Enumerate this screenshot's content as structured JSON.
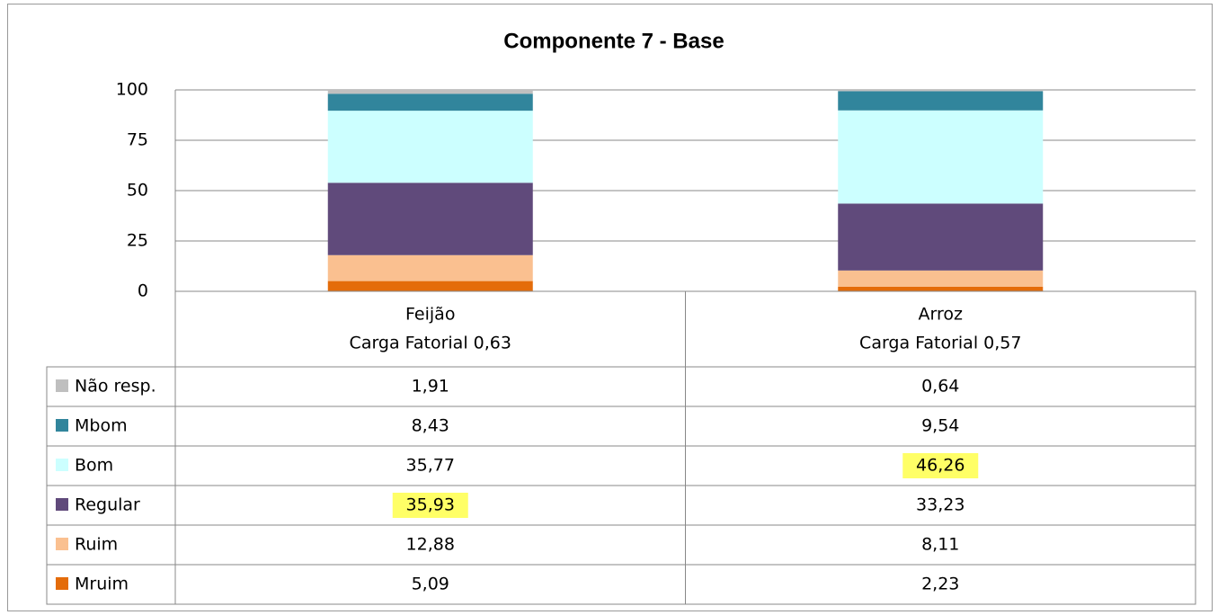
{
  "chart_data": {
    "type": "stacked_bar",
    "title": "Componente 7 - Base",
    "categories": [
      [
        "Feijão",
        "Carga Fatorial 0,63"
      ],
      [
        "Arroz",
        "Carga Fatorial 0,57"
      ]
    ],
    "ylim": [
      0,
      100
    ],
    "yticks": [
      0,
      25,
      50,
      75,
      100
    ],
    "grid": true,
    "highlight_color": "#ffff66",
    "series": [
      {
        "name": "Não resp.",
        "color": "#bfbfbf",
        "values": [
          1.91,
          0.64
        ],
        "value_labels": [
          "1,91",
          "0,64"
        ],
        "highlight": [
          false,
          false
        ]
      },
      {
        "name": "Mbom",
        "color": "#31859c",
        "values": [
          8.43,
          9.54
        ],
        "value_labels": [
          "8,43",
          "9,54"
        ],
        "highlight": [
          false,
          false
        ]
      },
      {
        "name": "Bom",
        "color": "#ccffff",
        "values": [
          35.77,
          46.26
        ],
        "value_labels": [
          "35,77",
          "46,26"
        ],
        "highlight": [
          false,
          true
        ]
      },
      {
        "name": "Regular",
        "color": "#604a7b",
        "values": [
          35.93,
          33.23
        ],
        "value_labels": [
          "35,93",
          "33,23"
        ],
        "highlight": [
          true,
          false
        ]
      },
      {
        "name": "Ruim",
        "color": "#fac090",
        "values": [
          12.88,
          8.11
        ],
        "value_labels": [
          "12,88",
          "8,11"
        ],
        "highlight": [
          false,
          false
        ]
      },
      {
        "name": "Mruim",
        "color": "#e46c0a",
        "values": [
          5.09,
          2.23
        ],
        "value_labels": [
          "5,09",
          "2,23"
        ],
        "highlight": [
          false,
          false
        ]
      }
    ]
  }
}
